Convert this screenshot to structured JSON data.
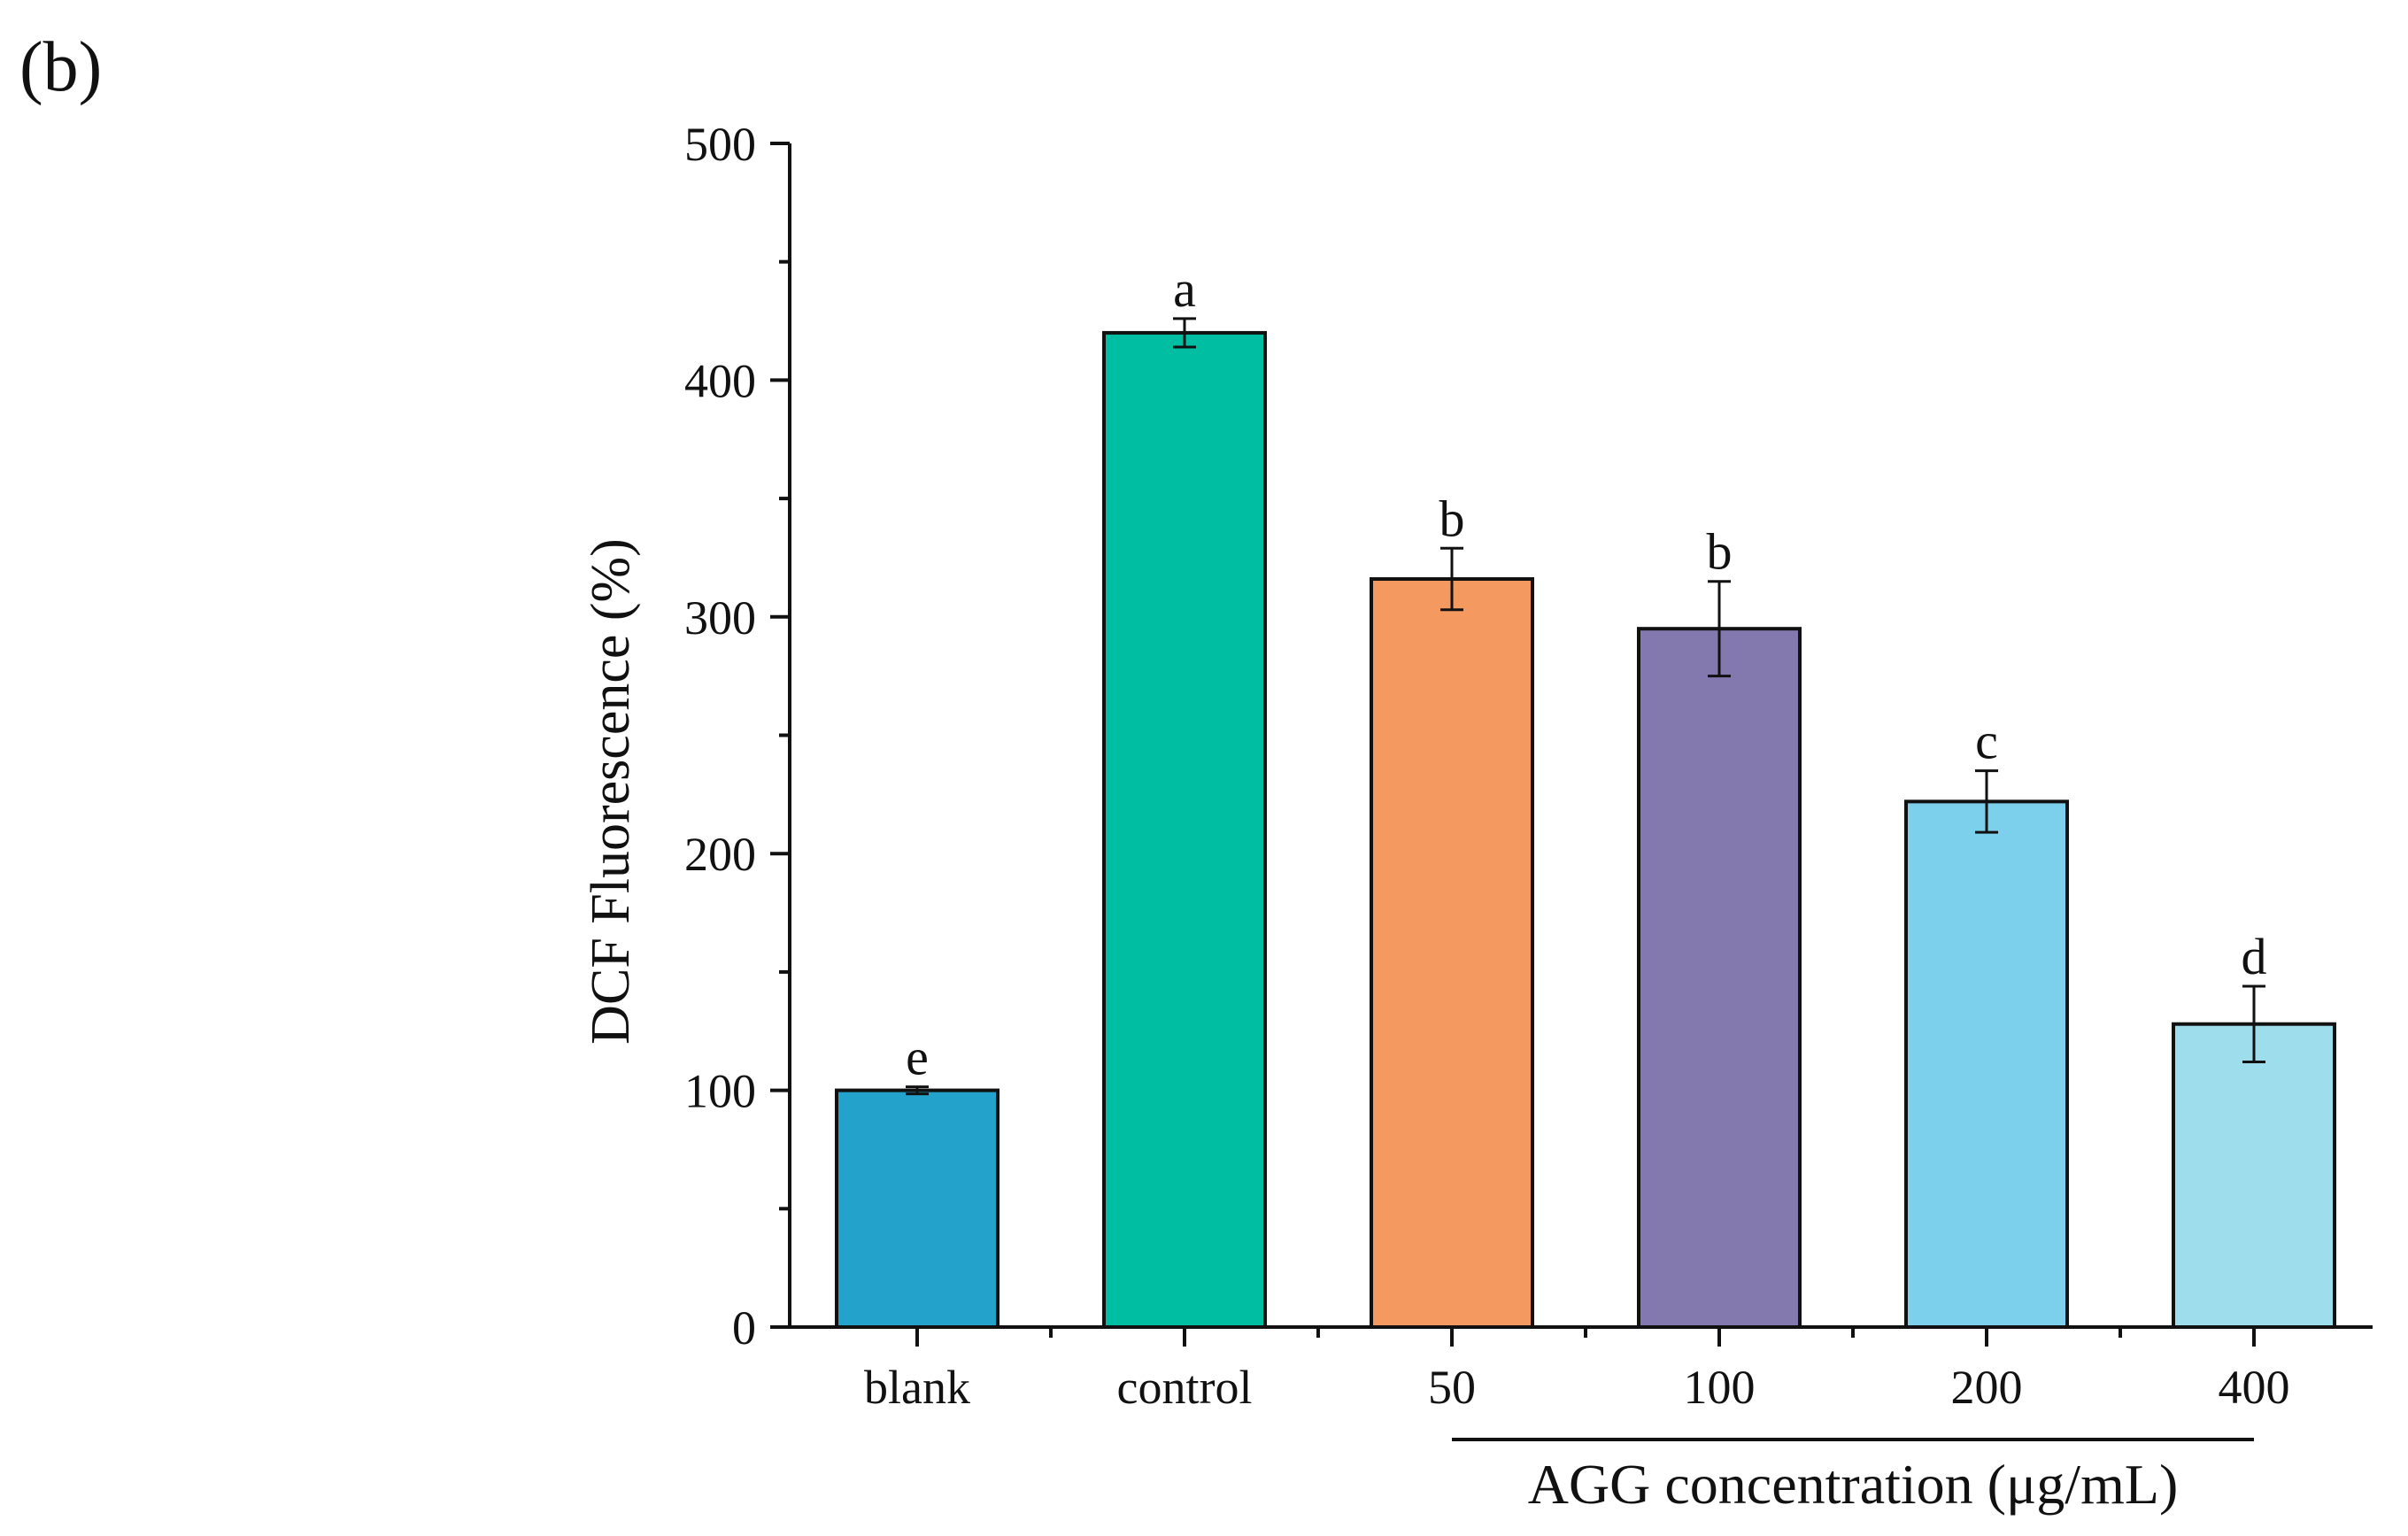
{
  "chart_data": {
    "type": "bar",
    "panel_label": "(b)",
    "title": "",
    "xlabel": "",
    "ylabel": "DCF Fluorescence (%)",
    "ylim": [
      0,
      500
    ],
    "yticks": [
      "0",
      "100",
      "200",
      "300",
      "400",
      "500"
    ],
    "categories": [
      "blank",
      "control",
      "50",
      "100",
      "200",
      "400"
    ],
    "values": [
      100,
      420,
      316,
      295,
      222,
      128
    ],
    "errors": [
      1.5,
      6,
      13,
      20,
      13,
      16
    ],
    "significance_letters": [
      "e",
      "a",
      "b",
      "b",
      "c",
      "d"
    ],
    "colors": [
      "#23A3CB",
      "#00BEA2",
      "#F49A61",
      "#8379AF",
      "#7DD0EB",
      "#9EDDEC"
    ],
    "bracket": {
      "label": "AGG concentration (μg/mL)",
      "span_categories": [
        "50",
        "400"
      ]
    },
    "grid": false,
    "legend": "none"
  }
}
